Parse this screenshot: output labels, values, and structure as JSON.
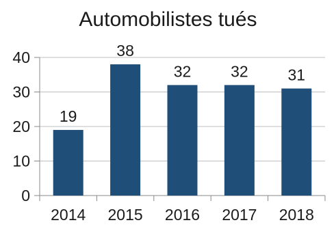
{
  "chart_data": {
    "type": "bar",
    "title": "Automobilistes tués",
    "categories": [
      "2014",
      "2015",
      "2016",
      "2017",
      "2018"
    ],
    "values": [
      19,
      38,
      32,
      32,
      31
    ],
    "ylim": [
      0,
      40
    ],
    "yticks": [
      0,
      10,
      20,
      30,
      40
    ],
    "grid": true,
    "legend": "none",
    "bar_color": "#1f4e79",
    "grid_color": "#bfbfbf",
    "axis_color": "#888888"
  }
}
